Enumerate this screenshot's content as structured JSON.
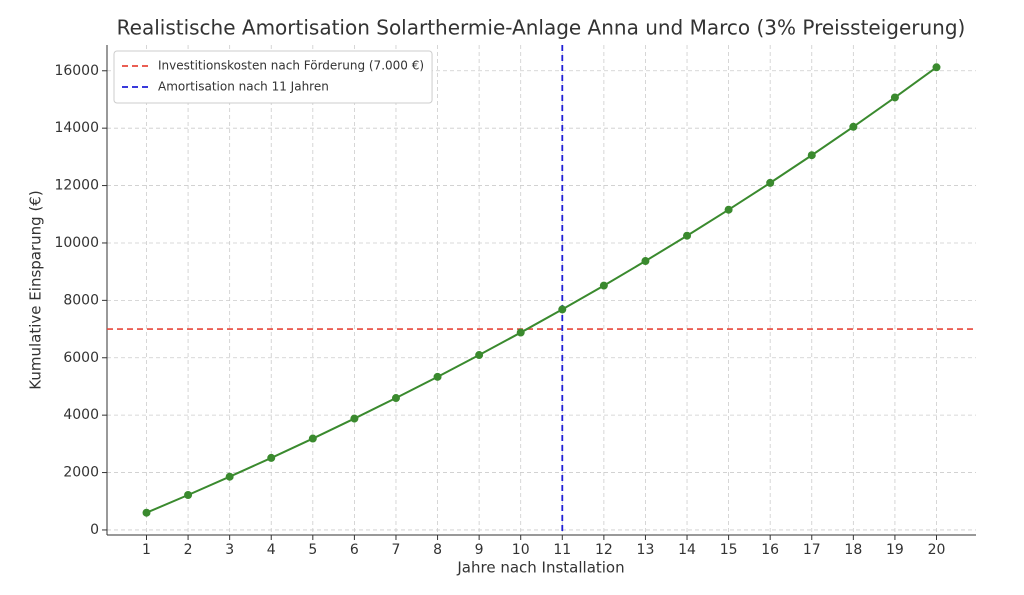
{
  "chart_data": {
    "type": "line",
    "title": "Realistische Amortisation Solarthermie-Anlage Anna und Marco (3% Preissteigerung)",
    "xlabel": "Jahre nach Installation",
    "ylabel": "Kumulative Einsparung (€)",
    "x": [
      1,
      2,
      3,
      4,
      5,
      6,
      7,
      8,
      9,
      10,
      11,
      12,
      13,
      14,
      15,
      16,
      17,
      18,
      19,
      20
    ],
    "values": [
      600,
      1218,
      1855,
      2510,
      3185,
      3881,
      4597,
      5335,
      6095,
      6878,
      7684,
      8515,
      9370,
      10252,
      11159,
      12094,
      13057,
      14048,
      15070,
      16122
    ],
    "color": "#3a8a2e",
    "xlim": [
      0.05,
      20.95
    ],
    "ylim": [
      -176,
      16898
    ],
    "xticks": [
      1,
      2,
      3,
      4,
      5,
      6,
      7,
      8,
      9,
      10,
      11,
      12,
      13,
      14,
      15,
      16,
      17,
      18,
      19,
      20
    ],
    "yticks": [
      0,
      2000,
      4000,
      6000,
      8000,
      10000,
      12000,
      14000,
      16000
    ],
    "grid": true,
    "legend": "upper left",
    "hlines": [
      {
        "value": 7000,
        "label": "Investitionskosten nach Förderung (7.000 €)",
        "color": "#e8473b"
      }
    ],
    "vlines": [
      {
        "value": 11,
        "label": "Amortisation nach 11 Jahren",
        "color": "#1f1fd6"
      }
    ]
  }
}
